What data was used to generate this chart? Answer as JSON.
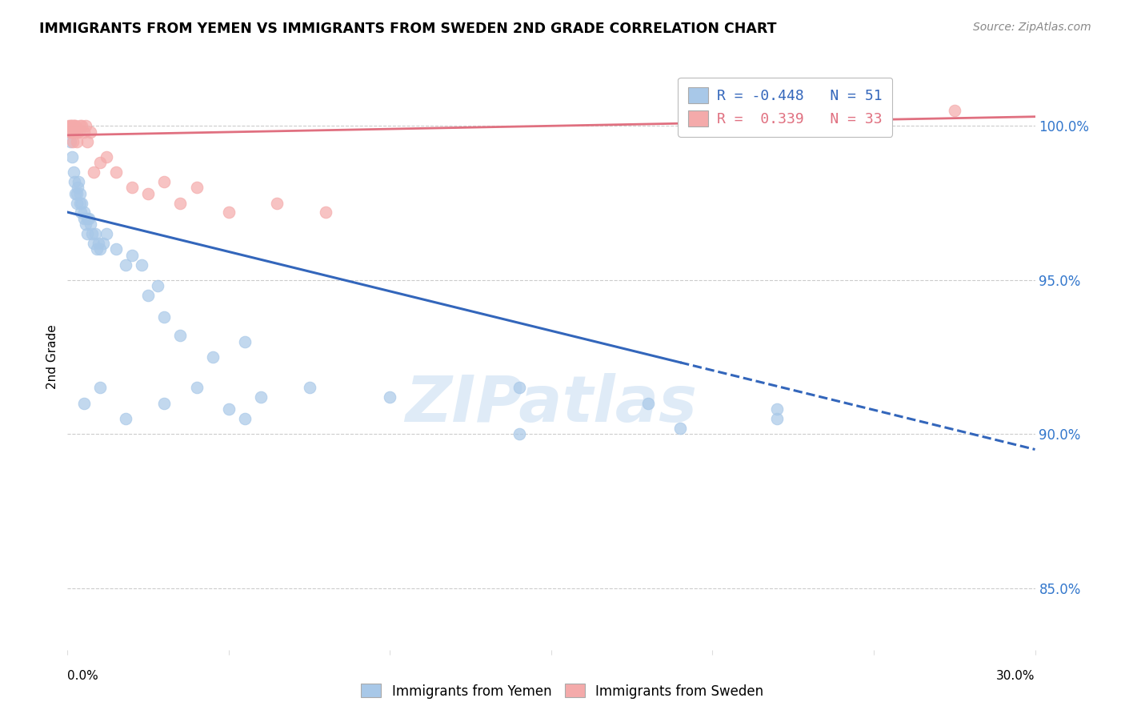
{
  "title": "IMMIGRANTS FROM YEMEN VS IMMIGRANTS FROM SWEDEN 2ND GRADE CORRELATION CHART",
  "source": "Source: ZipAtlas.com",
  "ylabel": "2nd Grade",
  "y_ticks": [
    85.0,
    90.0,
    95.0,
    100.0
  ],
  "y_tick_labels": [
    "85.0%",
    "90.0%",
    "95.0%",
    "100.0%"
  ],
  "xlim": [
    0.0,
    30.0
  ],
  "ylim": [
    83.0,
    102.0
  ],
  "legend_blue_R": "-0.448",
  "legend_blue_N": "51",
  "legend_pink_R": "0.339",
  "legend_pink_N": "33",
  "blue_color": "#A8C8E8",
  "pink_color": "#F4AAAA",
  "blue_line_color": "#3366BB",
  "pink_line_color": "#E07080",
  "watermark": "ZIPatlas",
  "watermark_color": "#C0D8F0",
  "blue_line_x0": 0.0,
  "blue_line_y0": 97.2,
  "blue_line_x1": 30.0,
  "blue_line_y1": 89.5,
  "blue_solid_end": 19.0,
  "pink_line_x0": 0.0,
  "pink_line_y0": 99.7,
  "pink_line_x1": 30.0,
  "pink_line_y1": 100.3,
  "blue_x": [
    0.1,
    0.15,
    0.2,
    0.22,
    0.25,
    0.28,
    0.3,
    0.32,
    0.35,
    0.38,
    0.4,
    0.42,
    0.45,
    0.5,
    0.52,
    0.55,
    0.6,
    0.62,
    0.65,
    0.7,
    0.75,
    0.8,
    0.85,
    0.9,
    0.95,
    1.0,
    1.1,
    1.2,
    1.5,
    1.8,
    2.0,
    2.3,
    2.5,
    2.8,
    3.0,
    3.5,
    4.5,
    5.5,
    7.5,
    10.0,
    14.0,
    19.0,
    22.0
  ],
  "blue_y": [
    99.5,
    99.0,
    98.5,
    98.2,
    97.8,
    97.5,
    97.8,
    98.0,
    98.2,
    97.5,
    97.8,
    97.2,
    97.5,
    97.2,
    97.0,
    96.8,
    97.0,
    96.5,
    97.0,
    96.8,
    96.5,
    96.2,
    96.5,
    96.0,
    96.2,
    96.0,
    96.2,
    96.5,
    96.0,
    95.5,
    95.8,
    95.5,
    94.5,
    94.8,
    93.8,
    93.2,
    92.5,
    93.0,
    91.5,
    91.2,
    91.5,
    90.2,
    90.8
  ],
  "blue_x2": [
    0.5,
    1.0,
    1.8,
    3.0,
    4.0,
    5.0,
    5.5,
    6.0,
    14.0,
    18.0,
    22.0
  ],
  "blue_y2": [
    91.0,
    91.5,
    90.5,
    91.0,
    91.5,
    90.8,
    90.5,
    91.2,
    90.0,
    91.0,
    90.5
  ],
  "pink_x": [
    0.05,
    0.08,
    0.1,
    0.12,
    0.14,
    0.15,
    0.17,
    0.18,
    0.2,
    0.22,
    0.25,
    0.28,
    0.3,
    0.35,
    0.4,
    0.45,
    0.5,
    0.55,
    0.6,
    0.7,
    0.8,
    1.0,
    1.2,
    1.5,
    2.0,
    2.5,
    3.0,
    3.5,
    4.0,
    5.0,
    6.5,
    8.0,
    27.5
  ],
  "pink_y": [
    100.0,
    99.8,
    100.0,
    100.0,
    99.8,
    100.0,
    99.5,
    100.0,
    99.8,
    100.0,
    100.0,
    99.8,
    99.5,
    99.8,
    100.0,
    100.0,
    99.8,
    100.0,
    99.5,
    99.8,
    98.5,
    98.8,
    99.0,
    98.5,
    98.0,
    97.8,
    98.2,
    97.5,
    98.0,
    97.2,
    97.5,
    97.2,
    100.5
  ]
}
